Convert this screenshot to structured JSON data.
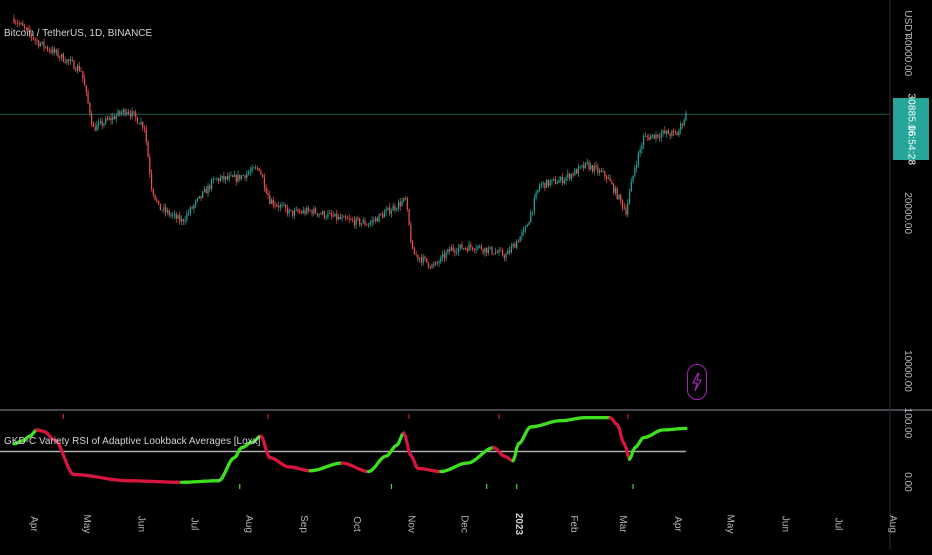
{
  "chart_data": {
    "type": "line",
    "symbol_title": "Bitcoin / TetherUS, 1D, BINANCE",
    "currency": "USDT",
    "last_price": "30885.06",
    "countdown": "16:54:28",
    "colors": {
      "background": "#000000",
      "bull_candle": "#26a69a",
      "bear_candle": "#ef5350",
      "rsi_bull": "#3fe01f",
      "rsi_bear": "#d5163f",
      "midline": "#b0b0b0",
      "price_line": "#26a69a",
      "bolt": "#9c27b0"
    },
    "price_axis": {
      "scale": "log",
      "ticks": [
        "40000.00",
        "20000.00",
        "10000.00"
      ],
      "tick_values": [
        40000,
        20000,
        10000
      ],
      "range": [
        8500,
        51000
      ]
    },
    "time_axis": {
      "labels": [
        "Apr",
        "May",
        "Jun",
        "Jul",
        "Aug",
        "Sep",
        "Oct",
        "Nov",
        "Dec",
        "2023",
        "Feb",
        "Mar",
        "Apr",
        "May",
        "Jun",
        "Jul",
        "Aug"
      ],
      "dates": [
        "2022-04-01",
        "2022-05-01",
        "2022-06-01",
        "2022-07-01",
        "2022-08-01",
        "2022-09-01",
        "2022-10-01",
        "2022-11-01",
        "2022-12-01",
        "2023-01-01",
        "2023-02-01",
        "2023-03-01",
        "2023-04-01",
        "2023-05-01",
        "2023-06-01",
        "2023-07-01",
        "2023-08-01"
      ]
    },
    "price_series": {
      "name": "BTCUSDT",
      "x": [
        "2022-03-28",
        "2022-04-10",
        "2022-04-25",
        "2022-05-05",
        "2022-05-12",
        "2022-05-31",
        "2022-06-10",
        "2022-06-14",
        "2022-06-18",
        "2022-07-01",
        "2022-07-20",
        "2022-08-01",
        "2022-08-14",
        "2022-08-20",
        "2022-09-01",
        "2022-09-13",
        "2022-10-01",
        "2022-10-15",
        "2022-11-05",
        "2022-11-09",
        "2022-11-21",
        "2022-12-01",
        "2022-12-15",
        "2023-01-01",
        "2023-01-12",
        "2023-01-20",
        "2023-02-01",
        "2023-02-16",
        "2023-02-27",
        "2023-03-10",
        "2023-03-15",
        "2023-03-20",
        "2023-03-31",
        "2023-04-08",
        "2023-04-13"
      ],
      "y": [
        47000,
        42500,
        39500,
        37500,
        29000,
        31500,
        29300,
        22500,
        20500,
        19300,
        23200,
        23300,
        24400,
        21200,
        20000,
        20200,
        19400,
        19100,
        21200,
        16800,
        15800,
        17100,
        17300,
        16600,
        18600,
        22600,
        23100,
        24700,
        23500,
        20200,
        24500,
        27800,
        28400,
        28300,
        30885
      ]
    },
    "indicator": {
      "title": "GKD-C Variety RSI of Adaptive Lookback Averages [Loxx]",
      "axis_ticks": [
        "100.00",
        "0.00"
      ],
      "range": [
        0,
        100
      ],
      "midline": 50,
      "x": [
        "2022-03-28",
        "2022-04-02",
        "2022-04-06",
        "2022-04-10",
        "2022-04-14",
        "2022-04-20",
        "2022-05-01",
        "2022-06-01",
        "2022-07-01",
        "2022-07-22",
        "2022-07-31",
        "2022-08-04",
        "2022-08-10",
        "2022-08-15",
        "2022-08-20",
        "2022-08-31",
        "2022-09-12",
        "2022-09-30",
        "2022-10-15",
        "2022-10-25",
        "2022-10-31",
        "2022-11-04",
        "2022-11-08",
        "2022-11-12",
        "2022-11-25",
        "2022-12-10",
        "2022-12-25",
        "2022-12-31",
        "2023-01-05",
        "2023-01-08",
        "2023-01-15",
        "2023-02-01",
        "2023-02-15",
        "2023-03-01",
        "2023-03-05",
        "2023-03-09",
        "2023-03-12",
        "2023-03-15",
        "2023-03-20",
        "2023-03-31",
        "2023-04-13"
      ],
      "y": [
        60,
        64,
        70,
        78,
        76,
        65,
        20,
        12,
        10,
        12,
        42,
        55,
        62,
        70,
        42,
        30,
        25,
        35,
        24,
        44,
        58,
        74,
        45,
        28,
        24,
        35,
        55,
        44,
        38,
        60,
        82,
        90,
        94,
        94,
        85,
        60,
        40,
        55,
        68,
        78,
        80
      ]
    }
  }
}
